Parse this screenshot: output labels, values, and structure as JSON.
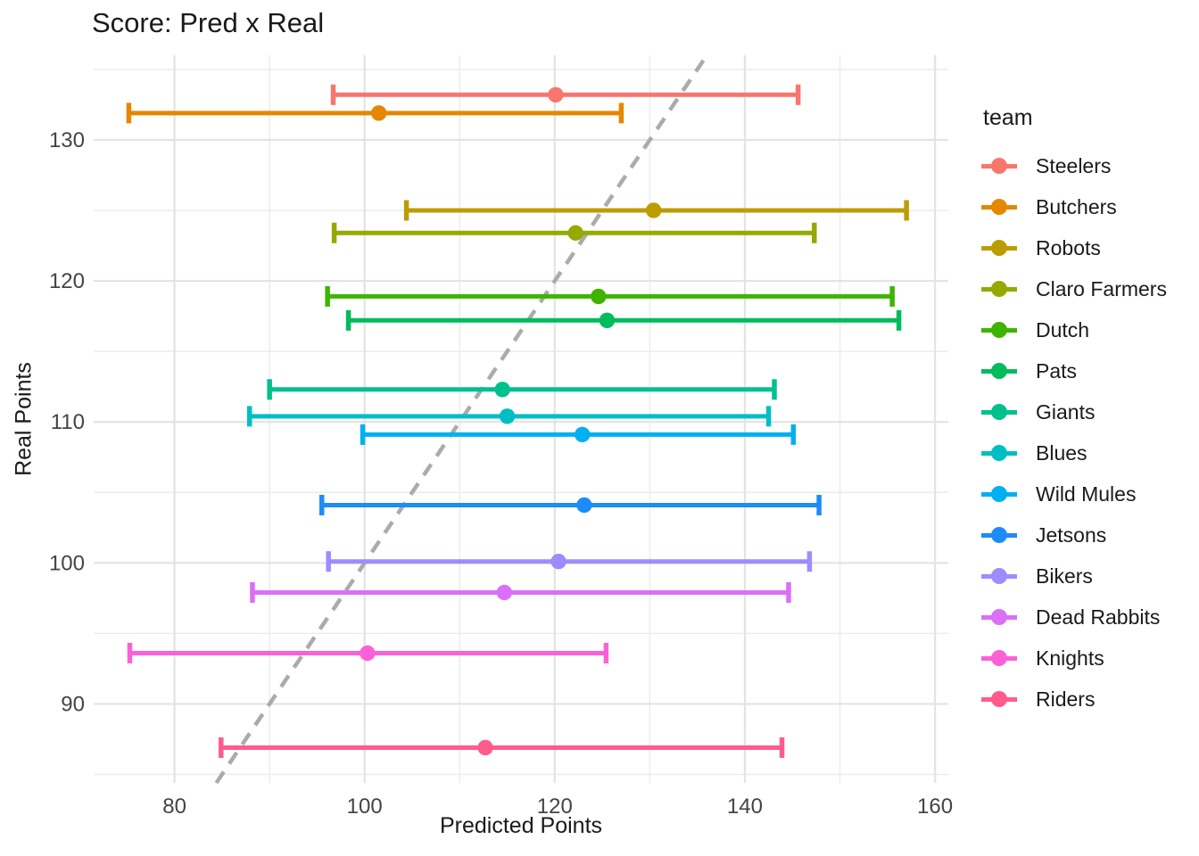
{
  "chart_data": {
    "type": "scatter",
    "subtype": "horizontal-errorbar",
    "title": "Score: Pred x Real",
    "xlabel": "Predicted Points",
    "ylabel": "Real Points",
    "legend_title": "team",
    "legend_position": "right",
    "grid": true,
    "x_ticks": [
      80,
      100,
      120,
      140,
      160
    ],
    "x_minor_ticks": [
      90,
      110,
      130,
      150
    ],
    "y_ticks": [
      90,
      100,
      110,
      120,
      130
    ],
    "y_minor_ticks": [
      85,
      95,
      105,
      115,
      125,
      135
    ],
    "x_domain": [
      71.5,
      161.4
    ],
    "y_domain": [
      84.4,
      136.0
    ],
    "identity_line": {
      "equation": "y = x",
      "style": "dashed",
      "color": "#ABABAB"
    },
    "style": {
      "background": "#FFFFFF",
      "grid_major_color": "#E3E3E3",
      "grid_minor_color": "#EDEDED",
      "tick_label_color": "#444444",
      "text_color": "#1A1A1A"
    },
    "series": [
      {
        "team": "Steelers",
        "color": "#F8766D",
        "real_points": 133.2,
        "pred_points": 120.1,
        "pred_low": 96.7,
        "pred_high": 145.6
      },
      {
        "team": "Butchers",
        "color": "#E58700",
        "real_points": 131.9,
        "pred_points": 101.5,
        "pred_low": 75.2,
        "pred_high": 127.0
      },
      {
        "team": "Robots",
        "color": "#BC9D00",
        "real_points": 125.0,
        "pred_points": 130.4,
        "pred_low": 104.4,
        "pred_high": 157.0
      },
      {
        "team": "Claro Farmers",
        "color": "#95A900",
        "real_points": 123.4,
        "pred_points": 122.2,
        "pred_low": 96.8,
        "pred_high": 147.3
      },
      {
        "team": "Dutch",
        "color": "#3FB400",
        "real_points": 118.9,
        "pred_points": 124.6,
        "pred_low": 96.1,
        "pred_high": 155.5
      },
      {
        "team": "Pats",
        "color": "#00BC5C",
        "real_points": 117.2,
        "pred_points": 125.5,
        "pred_low": 98.3,
        "pred_high": 156.2
      },
      {
        "team": "Giants",
        "color": "#00C08D",
        "real_points": 112.3,
        "pred_points": 114.5,
        "pred_low": 90.0,
        "pred_high": 143.1
      },
      {
        "team": "Blues",
        "color": "#00BFC4",
        "real_points": 110.4,
        "pred_points": 115.0,
        "pred_low": 87.9,
        "pred_high": 142.5
      },
      {
        "team": "Wild Mules",
        "color": "#00B0F0",
        "real_points": 109.1,
        "pred_points": 122.9,
        "pred_low": 99.8,
        "pred_high": 145.1
      },
      {
        "team": "Jetsons",
        "color": "#1E8BFB",
        "real_points": 104.1,
        "pred_points": 123.1,
        "pred_low": 95.5,
        "pred_high": 147.8
      },
      {
        "team": "Bikers",
        "color": "#9C8DFF",
        "real_points": 100.1,
        "pred_points": 120.4,
        "pred_low": 96.2,
        "pred_high": 146.8
      },
      {
        "team": "Dead Rabbits",
        "color": "#DB6FF8",
        "real_points": 97.9,
        "pred_points": 114.7,
        "pred_low": 88.2,
        "pred_high": 144.6
      },
      {
        "team": "Knights",
        "color": "#FB61D7",
        "real_points": 93.6,
        "pred_points": 100.3,
        "pred_low": 75.3,
        "pred_high": 125.4
      },
      {
        "team": "Riders",
        "color": "#FF5C8D",
        "real_points": 86.9,
        "pred_points": 112.7,
        "pred_low": 84.9,
        "pred_high": 143.9
      }
    ]
  }
}
